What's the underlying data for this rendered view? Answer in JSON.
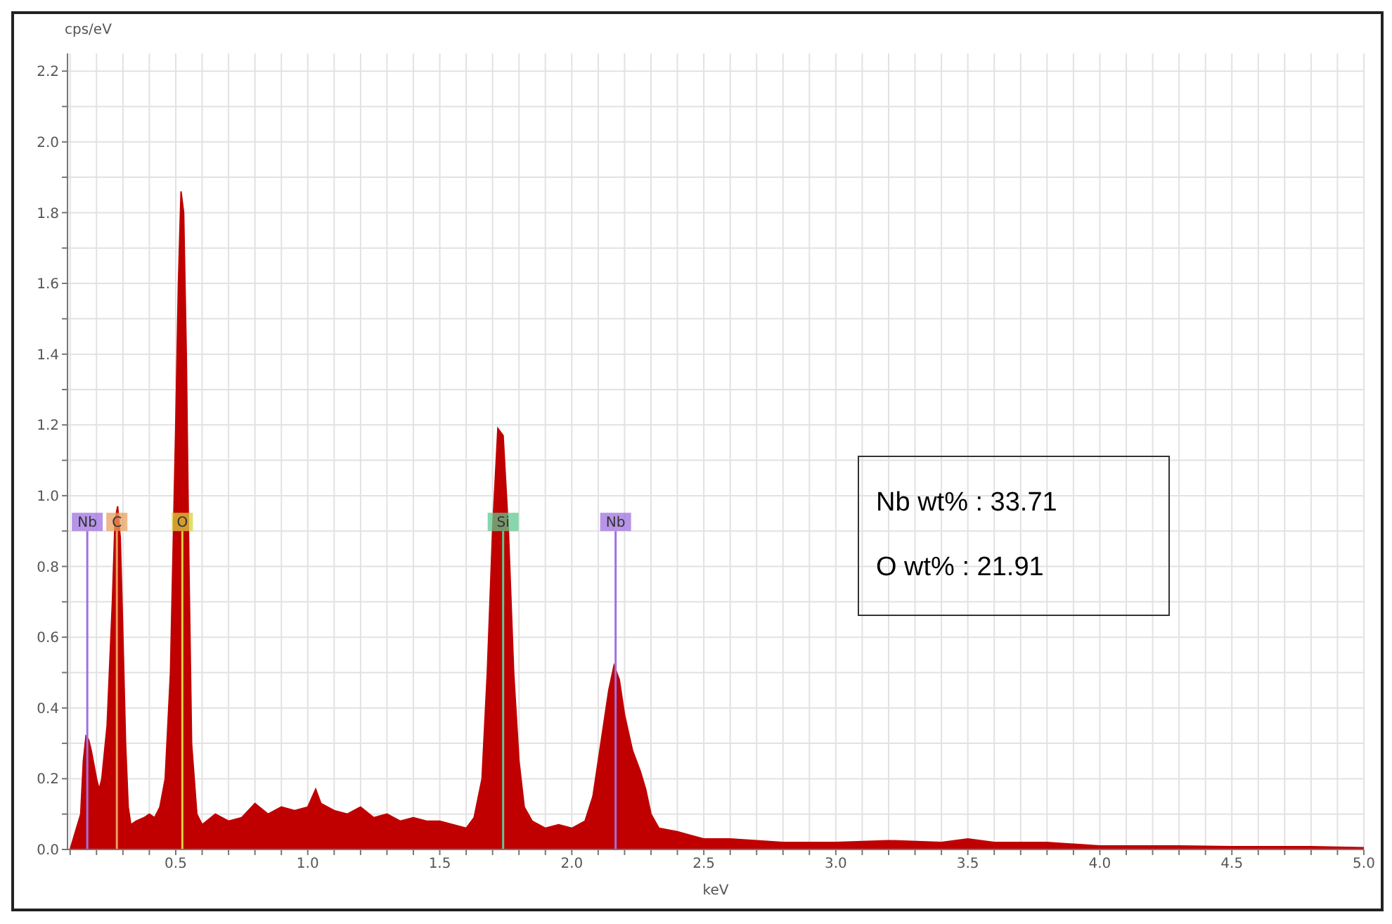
{
  "chart_data": {
    "type": "area",
    "ylabel": "cps/eV",
    "xlabel": "keV",
    "color": "#c00000",
    "grid": true,
    "x": [
      0.1,
      0.12,
      0.14,
      0.15,
      0.16,
      0.17,
      0.18,
      0.2,
      0.21,
      0.22,
      0.24,
      0.26,
      0.27,
      0.28,
      0.29,
      0.3,
      0.31,
      0.32,
      0.33,
      0.35,
      0.38,
      0.4,
      0.42,
      0.44,
      0.46,
      0.48,
      0.5,
      0.51,
      0.52,
      0.53,
      0.54,
      0.55,
      0.56,
      0.58,
      0.6,
      0.65,
      0.7,
      0.75,
      0.8,
      0.85,
      0.9,
      0.95,
      1.0,
      1.03,
      1.05,
      1.1,
      1.15,
      1.2,
      1.25,
      1.3,
      1.35,
      1.4,
      1.45,
      1.5,
      1.55,
      1.6,
      1.63,
      1.66,
      1.68,
      1.7,
      1.72,
      1.74,
      1.76,
      1.78,
      1.8,
      1.82,
      1.85,
      1.9,
      1.95,
      2.0,
      2.05,
      2.08,
      2.11,
      2.14,
      2.16,
      2.18,
      2.2,
      2.23,
      2.26,
      2.28,
      2.3,
      2.33,
      2.4,
      2.45,
      2.5,
      2.6,
      2.7,
      2.8,
      3.0,
      3.2,
      3.4,
      3.5,
      3.6,
      3.8,
      4.0,
      4.3,
      4.5,
      4.8,
      5.0
    ],
    "values": [
      0.0,
      0.05,
      0.1,
      0.25,
      0.32,
      0.31,
      0.28,
      0.2,
      0.17,
      0.2,
      0.35,
      0.7,
      0.93,
      0.97,
      0.88,
      0.6,
      0.3,
      0.12,
      0.07,
      0.08,
      0.09,
      0.1,
      0.09,
      0.12,
      0.2,
      0.5,
      1.2,
      1.6,
      1.86,
      1.8,
      1.4,
      0.8,
      0.3,
      0.1,
      0.07,
      0.1,
      0.08,
      0.09,
      0.13,
      0.1,
      0.12,
      0.11,
      0.12,
      0.17,
      0.13,
      0.11,
      0.1,
      0.12,
      0.09,
      0.1,
      0.08,
      0.09,
      0.08,
      0.08,
      0.07,
      0.06,
      0.09,
      0.2,
      0.5,
      0.9,
      1.19,
      1.17,
      0.9,
      0.5,
      0.25,
      0.12,
      0.08,
      0.06,
      0.07,
      0.06,
      0.08,
      0.15,
      0.3,
      0.45,
      0.52,
      0.48,
      0.38,
      0.28,
      0.22,
      0.17,
      0.1,
      0.06,
      0.05,
      0.04,
      0.03,
      0.03,
      0.025,
      0.02,
      0.02,
      0.025,
      0.02,
      0.03,
      0.02,
      0.02,
      0.01,
      0.01,
      0.008,
      0.008,
      0.005
    ],
    "xlim": [
      0.09,
      5.0
    ],
    "xticks": [
      {
        "value": 0.1,
        "label": null
      },
      {
        "value": 0.2,
        "label": null
      },
      {
        "value": 0.3,
        "label": null
      },
      {
        "value": 0.4,
        "label": null
      },
      {
        "value": 0.5,
        "label": "0.5"
      },
      {
        "value": 0.6,
        "label": null
      },
      {
        "value": 0.7,
        "label": null
      },
      {
        "value": 0.8,
        "label": null
      },
      {
        "value": 0.9,
        "label": null
      },
      {
        "value": 1.0,
        "label": "1.0"
      },
      {
        "value": 1.1,
        "label": null
      },
      {
        "value": 1.2,
        "label": null
      },
      {
        "value": 1.3,
        "label": null
      },
      {
        "value": 1.4,
        "label": null
      },
      {
        "value": 1.5,
        "label": "1.5"
      },
      {
        "value": 1.6,
        "label": null
      },
      {
        "value": 1.7,
        "label": null
      },
      {
        "value": 1.8,
        "label": null
      },
      {
        "value": 1.9,
        "label": null
      },
      {
        "value": 2.0,
        "label": "2.0"
      },
      {
        "value": 2.1,
        "label": null
      },
      {
        "value": 2.2,
        "label": null
      },
      {
        "value": 2.3,
        "label": null
      },
      {
        "value": 2.4,
        "label": null
      },
      {
        "value": 2.5,
        "label": "2.5"
      },
      {
        "value": 2.6,
        "label": null
      },
      {
        "value": 2.7,
        "label": null
      },
      {
        "value": 2.8,
        "label": null
      },
      {
        "value": 2.9,
        "label": null
      },
      {
        "value": 3.0,
        "label": "3.0"
      },
      {
        "value": 3.1,
        "label": null
      },
      {
        "value": 3.2,
        "label": null
      },
      {
        "value": 3.3,
        "label": null
      },
      {
        "value": 3.4,
        "label": null
      },
      {
        "value": 3.5,
        "label": "3.5"
      },
      {
        "value": 3.6,
        "label": null
      },
      {
        "value": 3.7,
        "label": null
      },
      {
        "value": 3.8,
        "label": null
      },
      {
        "value": 3.9,
        "label": null
      },
      {
        "value": 4.0,
        "label": "4.0"
      },
      {
        "value": 4.1,
        "label": null
      },
      {
        "value": 4.2,
        "label": null
      },
      {
        "value": 4.3,
        "label": null
      },
      {
        "value": 4.4,
        "label": null
      },
      {
        "value": 4.5,
        "label": "4.5"
      },
      {
        "value": 4.6,
        "label": null
      },
      {
        "value": 4.7,
        "label": null
      },
      {
        "value": 4.8,
        "label": null
      },
      {
        "value": 4.9,
        "label": null
      },
      {
        "value": 5.0,
        "label": "5.0"
      }
    ],
    "ylim": [
      0,
      2.25
    ],
    "yticks": [
      {
        "value": 0,
        "label": "0.0"
      },
      {
        "value": 0.1,
        "label": null
      },
      {
        "value": 0.2,
        "label": "0.2"
      },
      {
        "value": 0.3,
        "label": null
      },
      {
        "value": 0.4,
        "label": "0.4"
      },
      {
        "value": 0.5,
        "label": null
      },
      {
        "value": 0.6,
        "label": "0.6"
      },
      {
        "value": 0.7,
        "label": null
      },
      {
        "value": 0.8,
        "label": "0.8"
      },
      {
        "value": 0.9,
        "label": null
      },
      {
        "value": 1.0,
        "label": "1.0"
      },
      {
        "value": 1.1,
        "label": null
      },
      {
        "value": 1.2,
        "label": "1.2"
      },
      {
        "value": 1.3,
        "label": null
      },
      {
        "value": 1.4,
        "label": "1.4"
      },
      {
        "value": 1.5,
        "label": null
      },
      {
        "value": 1.6,
        "label": "1.6"
      },
      {
        "value": 1.7,
        "label": null
      },
      {
        "value": 1.8,
        "label": "1.8"
      },
      {
        "value": 1.9,
        "label": null
      },
      {
        "value": 2.0,
        "label": "2.0"
      },
      {
        "value": 2.1,
        "label": null
      },
      {
        "value": 2.2,
        "label": "2.2"
      }
    ],
    "ref_lines": [
      {
        "axis": "x",
        "value": 0.165,
        "label": "Nb",
        "color": "#a070e0"
      },
      {
        "axis": "x",
        "value": 0.277,
        "label": "C",
        "color": "#e8a060"
      },
      {
        "axis": "x",
        "value": 0.525,
        "label": "O",
        "color": "#d8d040"
      },
      {
        "axis": "x",
        "value": 1.74,
        "label": "Si",
        "color": "#60c890"
      },
      {
        "axis": "x",
        "value": 2.166,
        "label": "Nb",
        "color": "#a070e0"
      }
    ],
    "annotations": [
      "Nb wt% : 33.71",
      "O wt% : 21.91"
    ]
  }
}
